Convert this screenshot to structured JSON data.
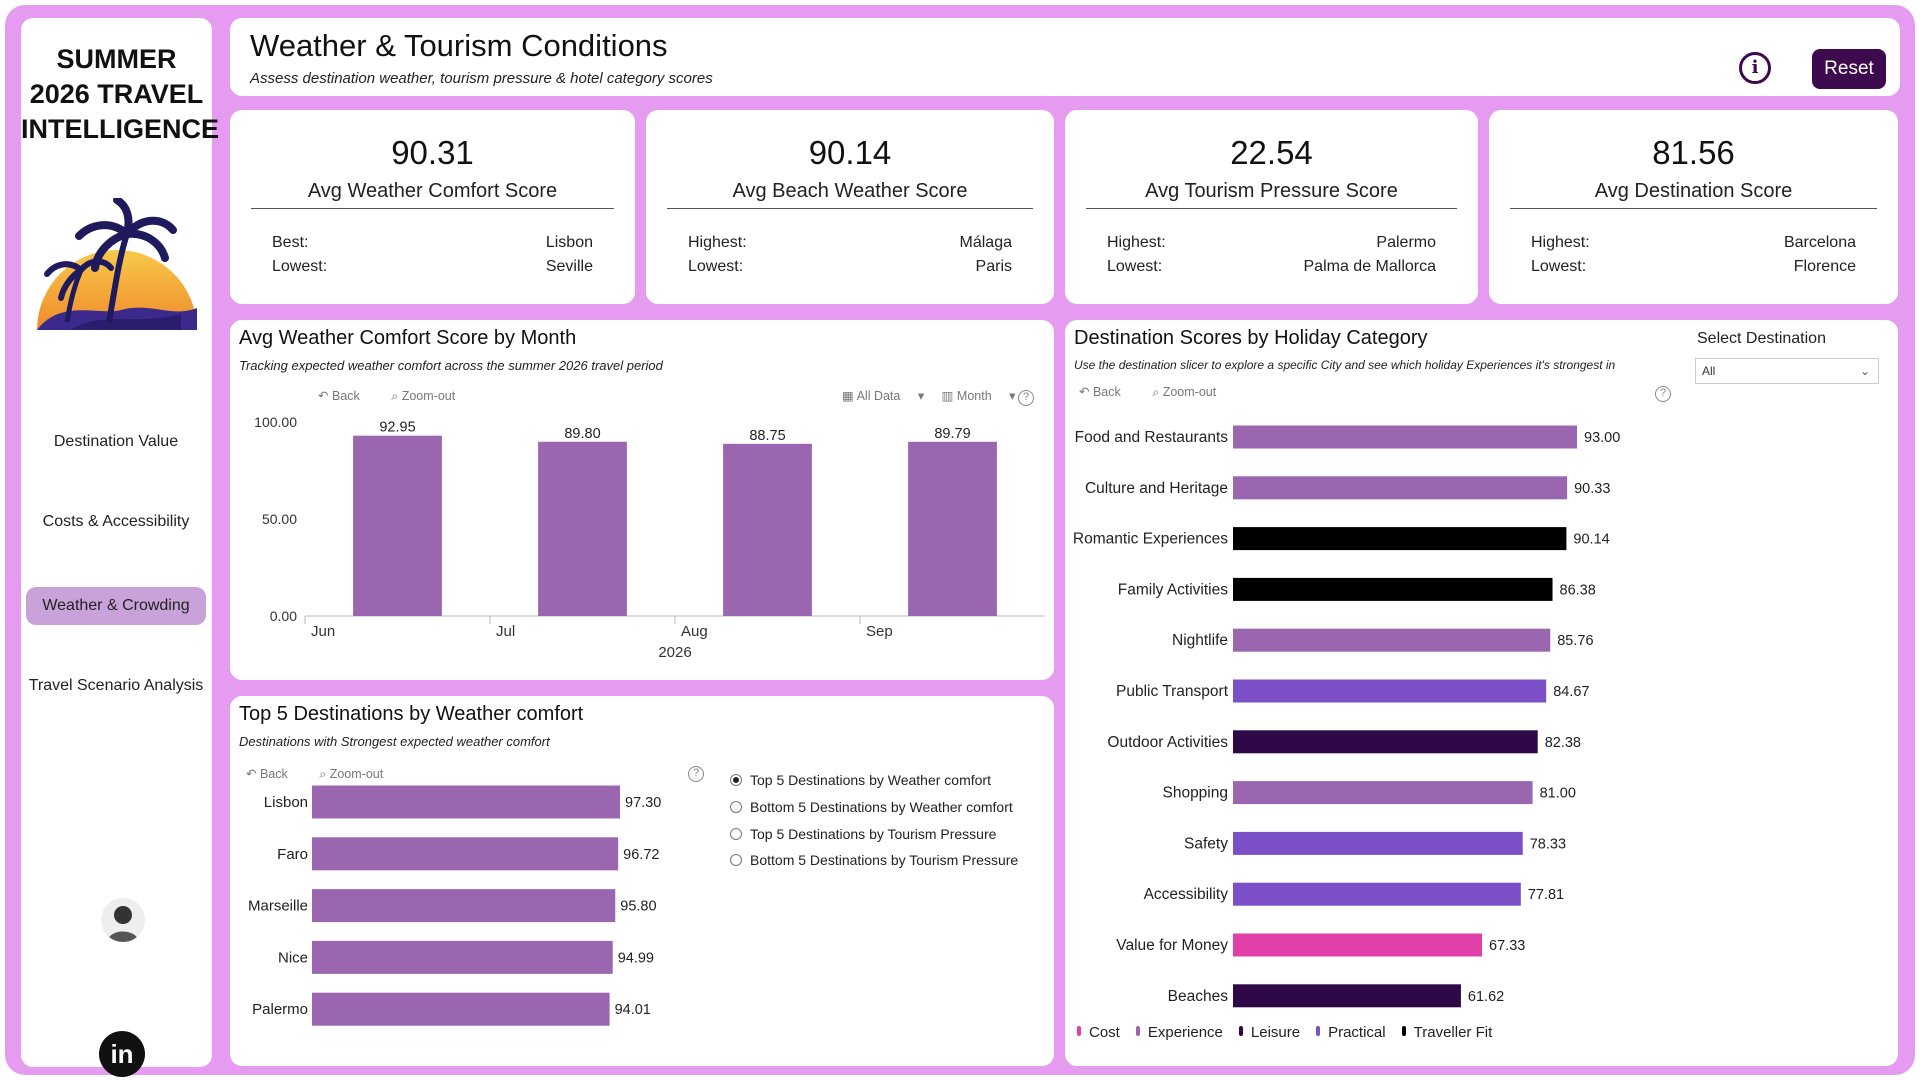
{
  "sidebar": {
    "title_lines": [
      "SUMMER",
      "2026 TRAVEL",
      "INTELLIGENCE"
    ],
    "nav": [
      {
        "label": "Destination Value"
      },
      {
        "label": "Costs & Accessibility"
      },
      {
        "label": "Weather & Crowding",
        "active": true
      },
      {
        "label": "Travel Scenario Analysis"
      }
    ],
    "linkedin_label": "in"
  },
  "header": {
    "title": "Weather & Tourism Conditions",
    "subtitle": "Assess destination weather, tourism pressure & hotel category scores",
    "info_icon": "i",
    "reset_label": "Reset"
  },
  "kpis": [
    {
      "value": "90.31",
      "label": "Avg Weather Comfort Score",
      "row1_label": "Best:",
      "row1_value": "Lisbon",
      "row2_label": "Lowest:",
      "row2_value": "Seville"
    },
    {
      "value": "90.14",
      "label": "Avg Beach Weather Score",
      "row1_label": "Highest:",
      "row1_value": "Málaga",
      "row2_label": "Lowest:",
      "row2_value": "Paris"
    },
    {
      "value": "22.54",
      "label": "Avg Tourism Pressure Score",
      "row1_label": "Highest:",
      "row1_value": "Palermo",
      "row2_label": "Lowest:",
      "row2_value": "Palma de Mallorca"
    },
    {
      "value": "81.56",
      "label": "Avg Destination Score",
      "row1_label": "Highest:",
      "row1_value": "Barcelona",
      "row2_label": "Lowest:",
      "row2_value": "Florence"
    }
  ],
  "toolbar": {
    "back": "Back",
    "zoom_out": "Zoom-out",
    "all_data": "All Data",
    "month": "Month",
    "help": "?"
  },
  "month_panel": {
    "title": "Avg Weather Comfort Score by Month",
    "subtitle": "Tracking expected weather comfort across the summer 2026 travel period"
  },
  "top_panel": {
    "title": "Top 5 Destinations by Weather comfort",
    "subtitle": "Destinations with Strongest expected weather comfort",
    "options": [
      {
        "label": "Top 5 Destinations by Weather comfort",
        "selected": true
      },
      {
        "label": "Bottom 5 Destinations by Weather comfort",
        "selected": false
      },
      {
        "label": "Top 5 Destinations by Tourism Pressure",
        "selected": false
      },
      {
        "label": "Bottom 5 Destinations by Tourism Pressure",
        "selected": false
      }
    ]
  },
  "cat_panel": {
    "title": "Destination Scores by Holiday Category",
    "subtitle": "Use the destination slicer to explore a specific City and see which  holiday Experiences it's strongest in",
    "slicer_label": "Select Destination",
    "slicer_value": "All"
  },
  "legend": [
    {
      "name": "Cost",
      "color": "#e040a8"
    },
    {
      "name": "Experience",
      "color": "#9b66b0"
    },
    {
      "name": "Leisure",
      "color": "#2e0847"
    },
    {
      "name": "Practical",
      "color": "#7a4fc7"
    },
    {
      "name": "Traveller Fit",
      "color": "#000000"
    }
  ],
  "chart_data": [
    {
      "type": "bar",
      "categories": [
        "Jun",
        "Jul",
        "Aug",
        "Sep"
      ],
      "values": [
        92.95,
        89.8,
        88.75,
        89.79
      ],
      "value_labels": [
        "92.95",
        "89.80",
        "88.75",
        "89.79"
      ],
      "yticks": [
        "100.00",
        "50.00",
        "0.00"
      ],
      "ylim": [
        0,
        100
      ],
      "x_year_label": "2026",
      "color": "#9b66b0"
    },
    {
      "type": "bar",
      "orientation": "horizontal",
      "categories": [
        "Lisbon",
        "Faro",
        "Marseille",
        "Nice",
        "Palermo"
      ],
      "values": [
        97.3,
        96.72,
        95.8,
        94.99,
        94.01
      ],
      "value_labels": [
        "97.30",
        "96.72",
        "95.80",
        "94.99",
        "94.01"
      ],
      "xlim": [
        0,
        97.3
      ],
      "color": "#9b66b0"
    },
    {
      "type": "bar",
      "orientation": "horizontal",
      "categories": [
        "Food and Restaurants",
        "Culture and Heritage",
        "Romantic Experiences",
        "Family Activities",
        "Nightlife",
        "Public Transport",
        "Outdoor Activities",
        "Shopping",
        "Safety",
        "Accessibility",
        "Value for Money",
        "Beaches"
      ],
      "values": [
        93.0,
        90.33,
        90.14,
        86.38,
        85.76,
        84.67,
        82.38,
        81.0,
        78.33,
        77.81,
        67.33,
        61.62
      ],
      "value_labels": [
        "93.00",
        "90.33",
        "90.14",
        "86.38",
        "85.76",
        "84.67",
        "82.38",
        "81.00",
        "78.33",
        "77.81",
        "67.33",
        "61.62"
      ],
      "groups": [
        "Experience",
        "Experience",
        "Traveller Fit",
        "Traveller Fit",
        "Experience",
        "Practical",
        "Leisure",
        "Experience",
        "Practical",
        "Practical",
        "Cost",
        "Leisure"
      ],
      "xlim": [
        0,
        93.0
      ]
    }
  ]
}
